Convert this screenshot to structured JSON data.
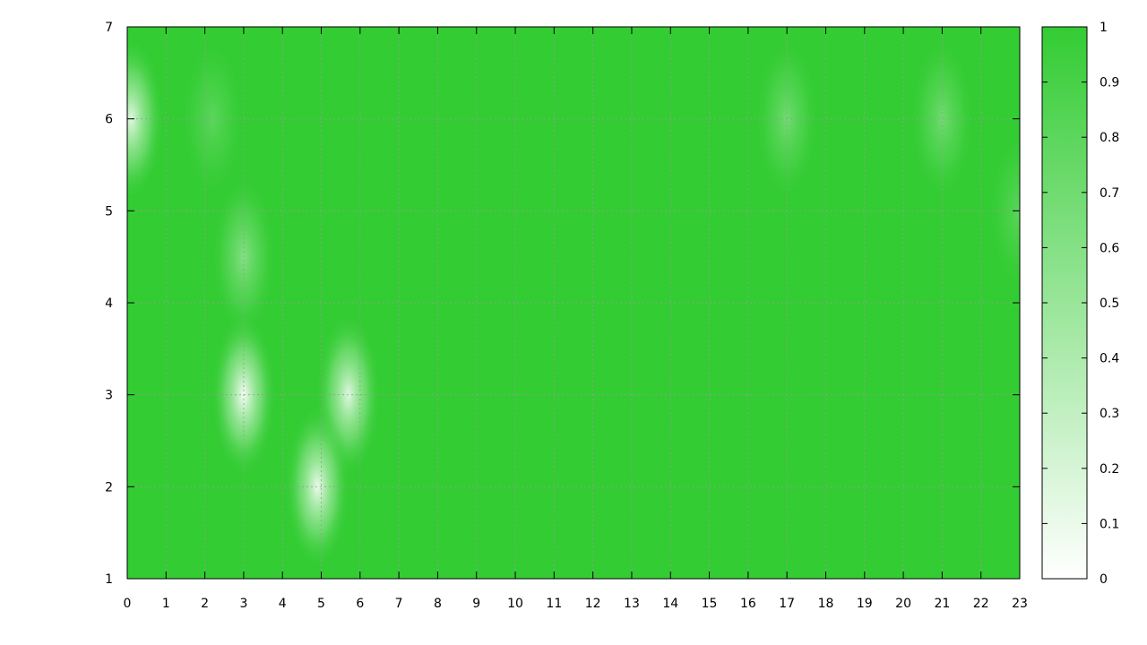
{
  "chart_data": {
    "type": "heatmap",
    "title": "",
    "xlabel": "",
    "ylabel": "",
    "xlim": [
      0,
      23
    ],
    "ylim": [
      1,
      7
    ],
    "x_ticks": [
      "0",
      "1",
      "2",
      "3",
      "4",
      "5",
      "6",
      "7",
      "8",
      "9",
      "10",
      "11",
      "12",
      "13",
      "14",
      "15",
      "16",
      "17",
      "18",
      "19",
      "20",
      "21",
      "22",
      "23"
    ],
    "y_ticks": [
      "1",
      "2",
      "3",
      "4",
      "5",
      "6",
      "7"
    ],
    "colorbar": {
      "range": [
        0,
        1
      ],
      "ticks": [
        "0",
        "0.1",
        "0.2",
        "0.3",
        "0.4",
        "0.5",
        "0.6",
        "0.7",
        "0.8",
        "0.9",
        "1"
      ],
      "low_color": "#ffffff",
      "high_color": "#33cc33"
    },
    "grid": true,
    "default_value": 1.0,
    "low_regions": [
      {
        "x": 0.1,
        "y": 6.0,
        "value": 0.15
      },
      {
        "x": 2.2,
        "y": 6.0,
        "value": 0.8
      },
      {
        "x": 3.0,
        "y": 4.5,
        "value": 0.6
      },
      {
        "x": 3.0,
        "y": 3.0,
        "value": 0.05
      },
      {
        "x": 5.7,
        "y": 3.0,
        "value": 0.15
      },
      {
        "x": 4.9,
        "y": 2.0,
        "value": 0.1
      },
      {
        "x": 17.0,
        "y": 6.0,
        "value": 0.7
      },
      {
        "x": 21.0,
        "y": 6.0,
        "value": 0.7
      },
      {
        "x": 23.0,
        "y": 5.0,
        "value": 0.8
      }
    ]
  }
}
